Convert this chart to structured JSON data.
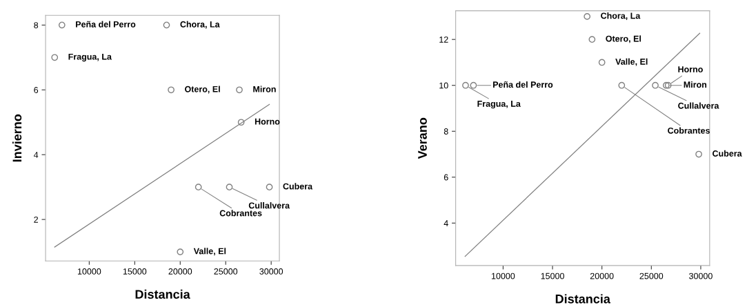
{
  "chart_data": [
    {
      "type": "scatter",
      "xlabel": "Distancia",
      "ylabel": "Invierno",
      "xlim": [
        5200,
        30900
      ],
      "ylim": [
        0.72,
        8.3
      ],
      "xticks": [
        10000,
        15000,
        20000,
        25000,
        30000
      ],
      "yticks": [
        2,
        4,
        6,
        8
      ],
      "grid": false,
      "legend": false,
      "series": [
        {
          "marker": "circle",
          "color": "#808080",
          "x": [
            7000,
            18500,
            6200,
            19000,
            26500,
            26700,
            22000,
            25400,
            29800,
            20000
          ],
          "values": [
            8,
            8,
            7,
            6,
            6,
            5,
            3,
            3,
            3,
            1
          ]
        },
        {
          "type": "line",
          "marker": "none",
          "color": "#808080",
          "x": [
            6200,
            29800
          ],
          "values": [
            1.15,
            5.55
          ]
        }
      ],
      "annotations": [
        {
          "text": "Peña del Perro",
          "x": 7000,
          "y": 8
        },
        {
          "text": "Chora, La",
          "x": 18500,
          "y": 8
        },
        {
          "text": "Fragua, La",
          "x": 6200,
          "y": 7
        },
        {
          "text": "Otero, El",
          "x": 19000,
          "y": 6
        },
        {
          "text": "Miron",
          "x": 26500,
          "y": 6
        },
        {
          "text": "Horno",
          "x": 26700,
          "y": 5
        },
        {
          "text": "Cobrantes",
          "x": 22000,
          "y": 3
        },
        {
          "text": "Cullalvera",
          "x": 25400,
          "y": 3
        },
        {
          "text": "Cubera",
          "x": 29800,
          "y": 3
        },
        {
          "text": "Valle, El",
          "x": 20000,
          "y": 1
        }
      ]
    },
    {
      "type": "scatter",
      "xlabel": "Distancia",
      "ylabel": "Verano",
      "xlim": [
        5200,
        30900
      ],
      "ylim": [
        2.15,
        13.25
      ],
      "xticks": [
        10000,
        15000,
        20000,
        25000,
        30000
      ],
      "yticks": [
        4,
        6,
        8,
        10,
        12
      ],
      "grid": false,
      "legend": false,
      "series": [
        {
          "marker": "circle",
          "color": "#808080",
          "x": [
            18500,
            19000,
            20000,
            6200,
            7000,
            22000,
            25400,
            26700,
            26500,
            29800
          ],
          "values": [
            13,
            12,
            11,
            10,
            10,
            10,
            10,
            10,
            10,
            7
          ]
        },
        {
          "type": "line",
          "marker": "none",
          "color": "#808080",
          "x": [
            6150,
            29900
          ],
          "values": [
            2.55,
            12.27
          ]
        }
      ],
      "annotations": [
        {
          "text": "Chora, La",
          "x": 18500,
          "y": 13
        },
        {
          "text": "Otero, El",
          "x": 19000,
          "y": 12
        },
        {
          "text": "Valle, El",
          "x": 20000,
          "y": 11
        },
        {
          "text": "Fragua, La",
          "x": 6200,
          "y": 10
        },
        {
          "text": "Peña del Perro",
          "x": 7000,
          "y": 10
        },
        {
          "text": "Cobrantes",
          "x": 22000,
          "y": 10
        },
        {
          "text": "Cullalvera",
          "x": 25400,
          "y": 10
        },
        {
          "text": "Horno",
          "x": 26700,
          "y": 10
        },
        {
          "text": "Miron",
          "x": 26500,
          "y": 10
        },
        {
          "text": "Cubera",
          "x": 29800,
          "y": 7
        }
      ]
    }
  ]
}
